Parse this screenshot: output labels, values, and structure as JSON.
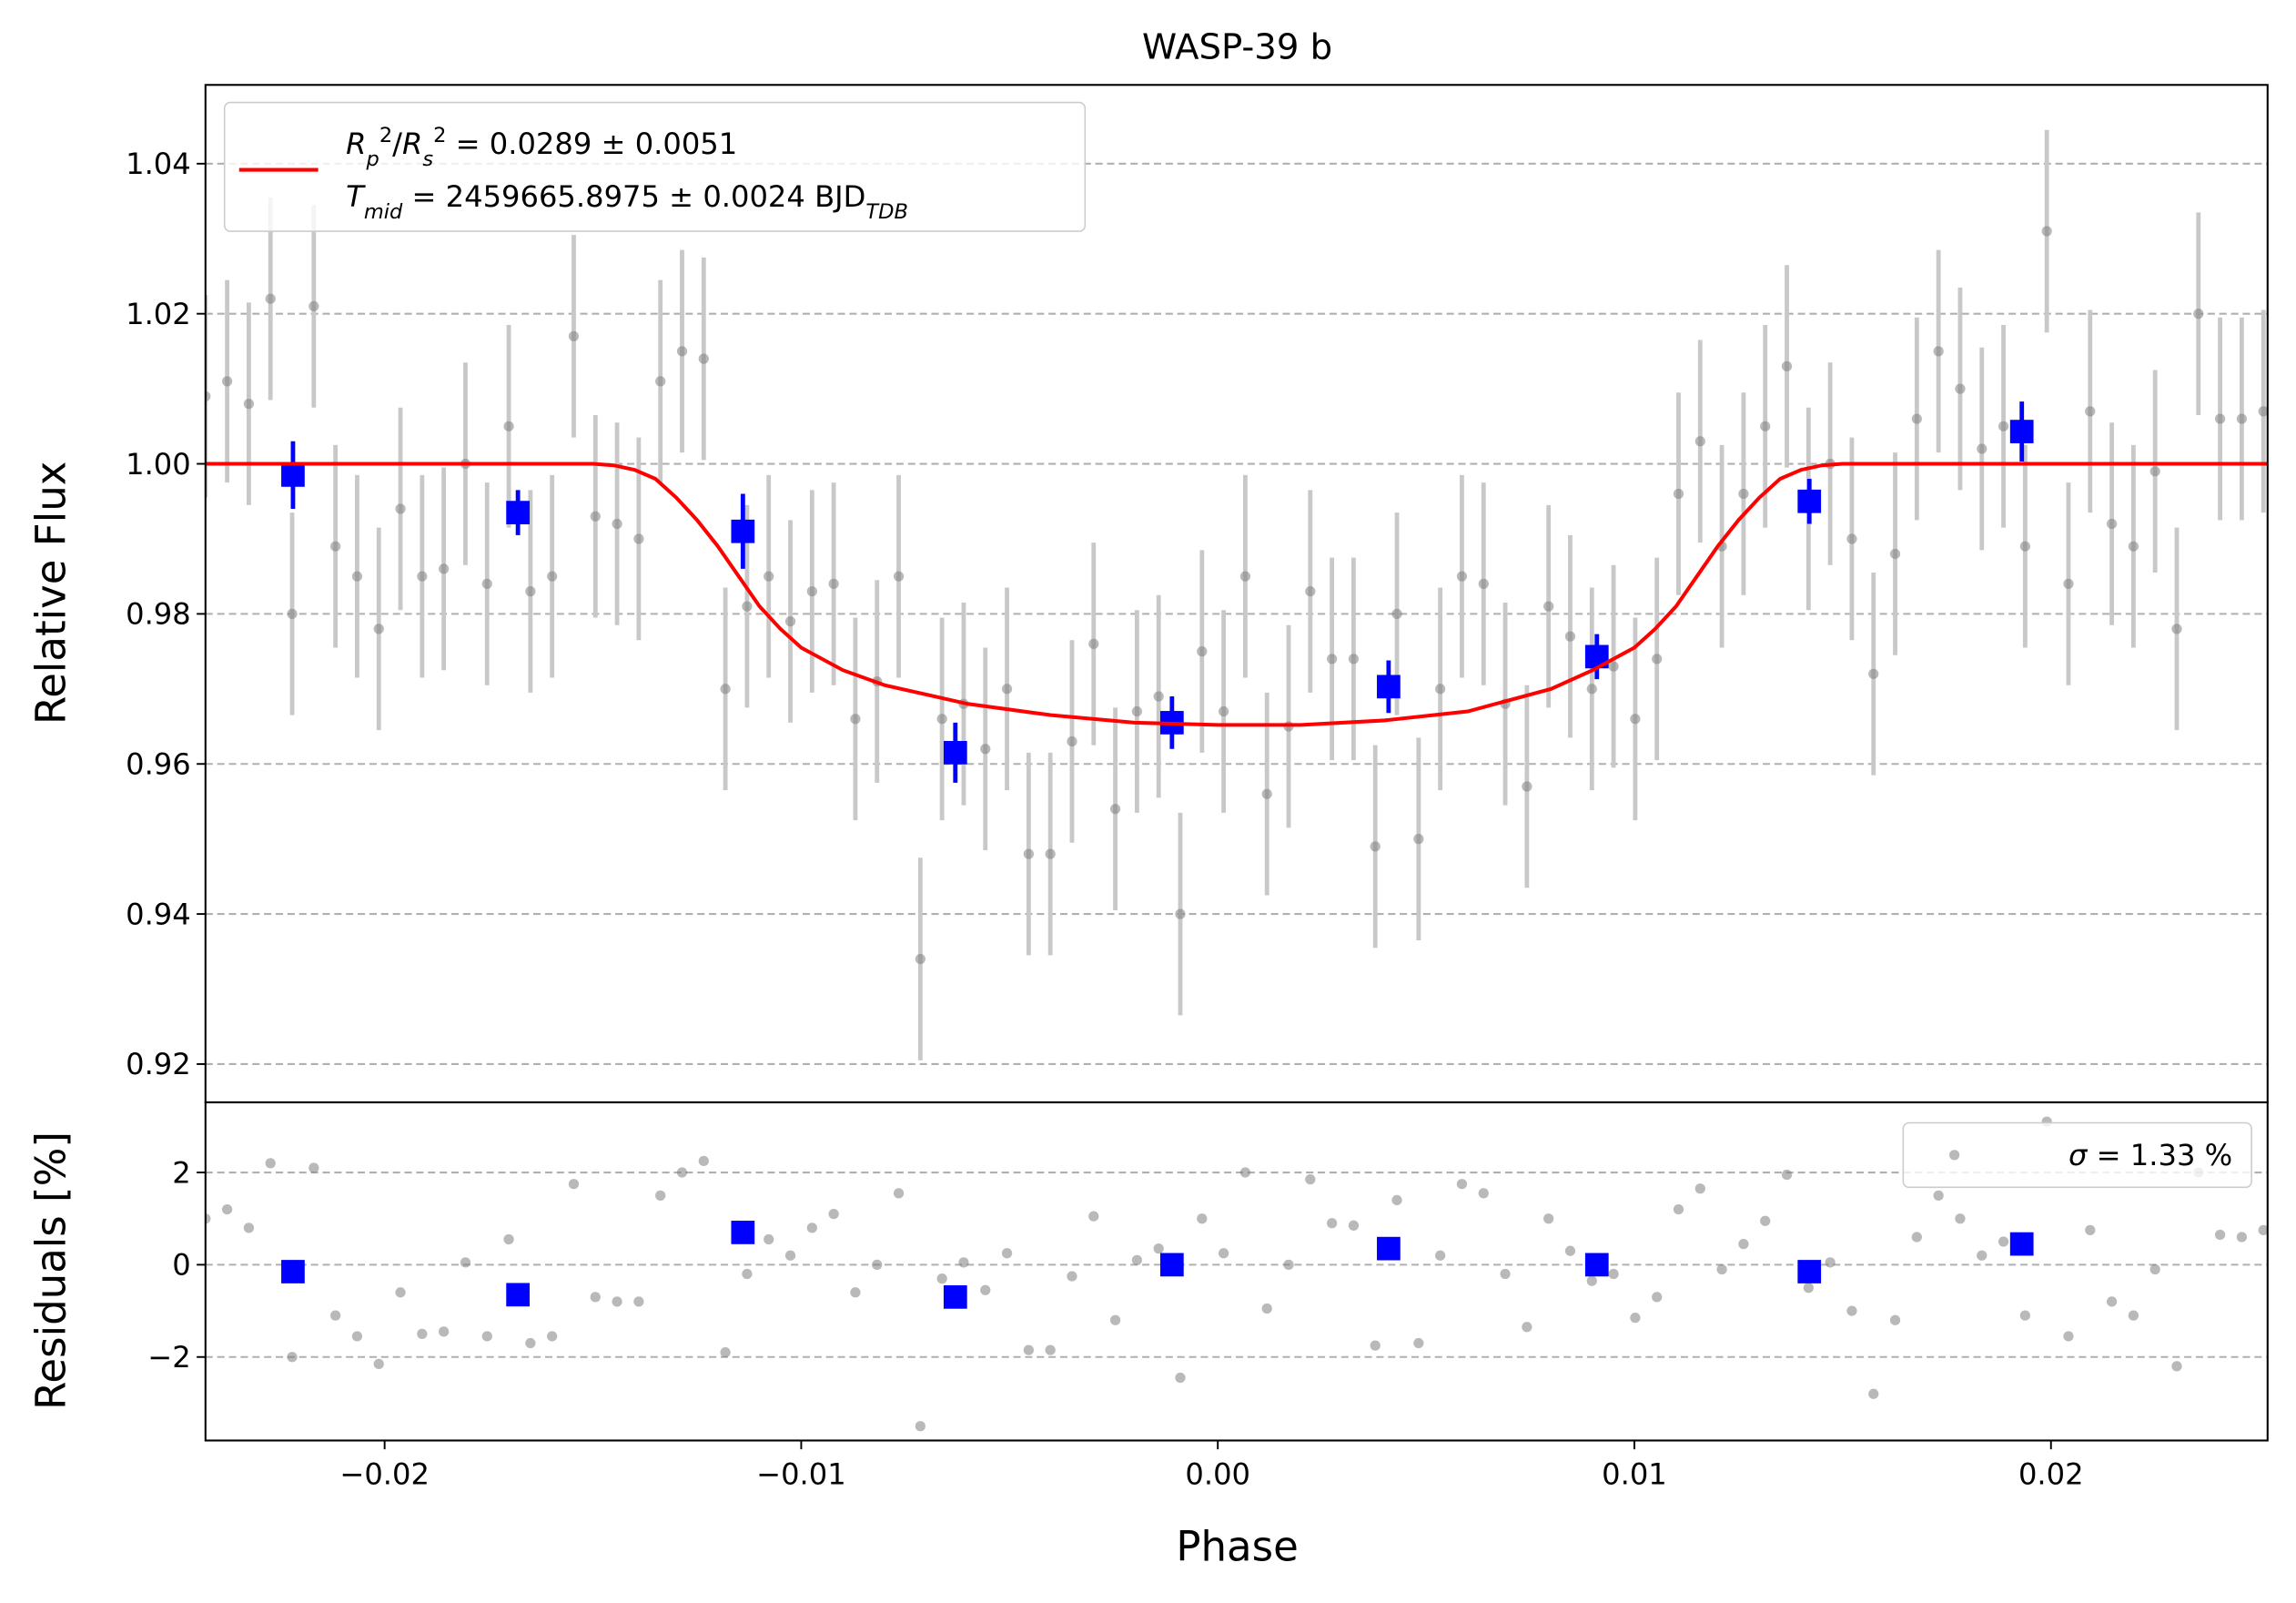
{
  "chart_data": [
    {
      "type": "errorbar",
      "title": "WASP-39 b",
      "y_label": "Relative Flux",
      "xlim": [
        -0.0243,
        0.0252
      ],
      "ylim": [
        0.9149,
        1.0505
      ],
      "yticks": [
        0.92,
        0.94,
        0.96,
        0.98,
        {
          "value": 1.0,
          "label": "1.00"
        },
        1.02,
        1.04
      ],
      "grid": true,
      "legend": "upper left",
      "series": [
        {
          "kind": "points",
          "color": "#808080",
          "error_color": "#c8c8c8",
          "error": 0.0135,
          "x": [
            -0.0243,
            -0.02378,
            -0.02326,
            -0.02274,
            -0.02222,
            -0.0217,
            -0.02118,
            -0.02066,
            -0.02014,
            -0.01962,
            -0.0191,
            -0.01858,
            -0.01806,
            -0.01754,
            -0.01702,
            -0.0165,
            -0.01598,
            -0.01546,
            -0.01494,
            -0.01442,
            -0.0139,
            -0.01338,
            -0.01286,
            -0.01234,
            -0.01182,
            -0.0113,
            -0.01078,
            -0.01026,
            -0.00974,
            -0.00922,
            -0.0087,
            -0.00818,
            -0.00766,
            -0.00714,
            -0.00662,
            -0.0061,
            -0.00558,
            -0.00506,
            -0.00454,
            -0.00402,
            -0.0035,
            -0.00298,
            -0.00246,
            -0.00194,
            -0.00142,
            -0.0009,
            -0.00038,
            0.00014,
            0.00066,
            0.00118,
            0.0017,
            0.00222,
            0.00274,
            0.00326,
            0.00378,
            0.0043,
            0.00482,
            0.00534,
            0.00586,
            0.00638,
            0.0069,
            0.00742,
            0.00794,
            0.00846,
            0.00898,
            0.0095,
            0.01002,
            0.01054,
            0.01106,
            0.01158,
            0.0121,
            0.01262,
            0.01314,
            0.01366,
            0.01418,
            0.0147,
            0.01522,
            0.01574,
            0.01626,
            0.01678,
            0.0173,
            0.01782,
            0.01834,
            0.01886,
            0.01938,
            0.0199,
            0.02042,
            0.02094,
            0.02146,
            0.02198,
            0.0225,
            0.02302,
            0.02354,
            0.02406,
            0.02458,
            0.0251
          ],
          "values": [
            1.009,
            1.011,
            1.008,
            1.022,
            0.98,
            1.021,
            0.989,
            0.985,
            0.978,
            0.994,
            0.985,
            0.986,
            1.0,
            0.984,
            1.005,
            0.983,
            0.985,
            1.017,
            0.993,
            0.992,
            0.99,
            1.011,
            1.015,
            1.014,
            0.97,
            0.981,
            0.985,
            0.979,
            0.983,
            0.984,
            0.966,
            0.971,
            0.985,
            0.934,
            0.966,
            0.968,
            0.962,
            0.97,
            0.948,
            0.948,
            0.963,
            0.976,
            0.954,
            0.967,
            0.969,
            0.94,
            0.975,
            0.967,
            0.985,
            0.956,
            0.965,
            0.983,
            0.974,
            0.974,
            0.949,
            0.98,
            0.95,
            0.97,
            0.985,
            0.984,
            0.968,
            0.957,
            0.981,
            0.977,
            0.97,
            0.973,
            0.966,
            0.974,
            0.996,
            1.003,
            0.989,
            0.996,
            1.005,
            1.013,
            0.994,
            1.0,
            0.99,
            0.972,
            0.988,
            1.006,
            1.015,
            1.01,
            1.002,
            1.005,
            0.989,
            1.031,
            0.984,
            1.007,
            0.992,
            0.989,
            0.999,
            0.978,
            1.02,
            1.006,
            1.006,
            1.007
          ]
        },
        {
          "kind": "binned",
          "color": "#0000ff",
          "x": [
            -0.0222,
            -0.0168,
            -0.0114,
            -0.0063,
            -0.0011,
            0.0041,
            0.0091,
            0.0142,
            0.0193
          ],
          "values": [
            0.9985,
            0.9935,
            0.991,
            0.9615,
            0.9655,
            0.9703,
            0.9743,
            0.995,
            1.0043
          ],
          "errors": [
            0.0045,
            0.003,
            0.005,
            0.004,
            0.0035,
            0.0035,
            0.003,
            0.003,
            0.004
          ]
        },
        {
          "kind": "line",
          "color": "#ff0000",
          "name": [
            [
              {
                "text": "R",
                "italic": true
              },
              {
                "text": "p",
                "italic": true,
                "pos": "sub"
              },
              {
                "text": "2",
                "pos": "sup"
              },
              {
                "text": "/"
              },
              {
                "text": "R",
                "italic": true
              },
              {
                "text": "s",
                "italic": true,
                "pos": "sub"
              },
              {
                "text": "2",
                "pos": "sup"
              },
              {
                "text": " = 0.0289 ± 0.0051"
              }
            ],
            [
              {
                "text": "T",
                "italic": true
              },
              {
                "text": "mid",
                "italic": true,
                "pos": "sub"
              },
              {
                "text": " = 2459665.8975 ± 0.0024 BJD"
              },
              {
                "text": "TDB",
                "italic": true,
                "pos": "sub"
              }
            ]
          ],
          "x": [
            -0.0243,
            -0.015,
            -0.0145,
            -0.014,
            -0.0135,
            -0.013,
            -0.0125,
            -0.012,
            -0.0115,
            -0.011,
            -0.0105,
            -0.01,
            -0.009,
            -0.008,
            -0.006,
            -0.004,
            -0.002,
            0,
            0.002,
            0.004,
            0.006,
            0.008,
            0.009,
            0.01,
            0.0105,
            0.011,
            0.0115,
            0.012,
            0.0125,
            0.013,
            0.0135,
            0.014,
            0.0145,
            0.015,
            0.0252
          ],
          "values": [
            1,
            1,
            0.9998,
            0.9992,
            0.998,
            0.9955,
            0.9925,
            0.989,
            0.985,
            0.981,
            0.978,
            0.9755,
            0.9725,
            0.9705,
            0.968,
            0.9665,
            0.9655,
            0.9652,
            0.9652,
            0.9658,
            0.967,
            0.97,
            0.9725,
            0.9755,
            0.978,
            0.981,
            0.985,
            0.989,
            0.9925,
            0.9955,
            0.998,
            0.9992,
            0.9998,
            1,
            1
          ]
        }
      ]
    },
    {
      "type": "scatter",
      "x_label": "Phase",
      "y_label": "Residuals [%]",
      "xlim": [
        -0.0243,
        0.0252
      ],
      "ylim": [
        -3.81,
        3.52
      ],
      "xticks": [
        {
          "value": -0.02,
          "label": "−0.02"
        },
        {
          "value": -0.01,
          "label": "−0.01"
        },
        {
          "value": 0,
          "label": "0.00"
        },
        0.01,
        0.02
      ],
      "yticks": [
        {
          "value": -2,
          "label": "−2"
        },
        0,
        2
      ],
      "grid": true,
      "legend": "upper right",
      "series": [
        {
          "kind": "points",
          "color": "#808080",
          "name": [
            [
              {
                "text": "σ",
                "italic": true
              },
              {
                "text": " = 1.33 %"
              }
            ]
          ],
          "x": [
            -0.0243,
            -0.02378,
            -0.02326,
            -0.02274,
            -0.02222,
            -0.0217,
            -0.02118,
            -0.02066,
            -0.02014,
            -0.01962,
            -0.0191,
            -0.01858,
            -0.01806,
            -0.01754,
            -0.01702,
            -0.0165,
            -0.01598,
            -0.01546,
            -0.01494,
            -0.01442,
            -0.0139,
            -0.01338,
            -0.01286,
            -0.01234,
            -0.01182,
            -0.0113,
            -0.01078,
            -0.01026,
            -0.00974,
            -0.00922,
            -0.0087,
            -0.00818,
            -0.00766,
            -0.00714,
            -0.00662,
            -0.0061,
            -0.00558,
            -0.00506,
            -0.00454,
            -0.00402,
            -0.0035,
            -0.00298,
            -0.00246,
            -0.00194,
            -0.00142,
            -0.0009,
            -0.00038,
            0.00014,
            0.00066,
            0.00118,
            0.0017,
            0.00222,
            0.00274,
            0.00326,
            0.00378,
            0.0043,
            0.00482,
            0.00534,
            0.00586,
            0.00638,
            0.0069,
            0.00742,
            0.00794,
            0.00846,
            0.00898,
            0.0095,
            0.01002,
            0.01054,
            0.01106,
            0.01158,
            0.0121,
            0.01262,
            0.01314,
            0.01366,
            0.01418,
            0.0147,
            0.01522,
            0.01574,
            0.01626,
            0.01678,
            0.0173,
            0.01782,
            0.01834,
            0.01886,
            0.01938,
            0.0199,
            0.02042,
            0.02094,
            0.02146,
            0.02198,
            0.0225,
            0.02302,
            0.02354,
            0.02406,
            0.02458,
            0.0251
          ],
          "values": [
            1.0,
            1.2,
            0.8,
            2.2,
            -2.0,
            2.1,
            -1.1,
            -1.55,
            -2.15,
            -0.6,
            -1.5,
            -1.45,
            0.05,
            -1.55,
            0.55,
            -1.7,
            -1.55,
            1.75,
            -0.7,
            -0.8,
            -0.8,
            1.5,
            2.0,
            2.25,
            -1.9,
            -0.2,
            0.55,
            0.2,
            0.8,
            1.1,
            -0.6,
            0.0,
            1.55,
            -3.5,
            -0.3,
            0.05,
            -0.55,
            0.25,
            -1.85,
            -1.85,
            -0.25,
            1.05,
            -1.2,
            0.1,
            0.35,
            -2.45,
            1.0,
            0.25,
            2.0,
            -0.95,
            0.0,
            1.85,
            0.9,
            0.85,
            -1.75,
            1.4,
            -1.7,
            0.2,
            1.75,
            1.55,
            -0.2,
            -1.35,
            1.0,
            0.3,
            -0.35,
            -0.2,
            -1.15,
            -0.7,
            1.2,
            1.65,
            -0.1,
            0.45,
            0.95,
            1.95,
            -0.5,
            0.05,
            -1.0,
            -2.8,
            -1.2,
            0.6,
            1.5,
            1.0,
            0.2,
            0.5,
            -1.1,
            3.1,
            -1.55,
            0.75,
            -0.8,
            -1.1,
            -0.1,
            -2.2,
            2.0,
            0.65,
            0.6,
            0.75
          ]
        },
        {
          "kind": "binned",
          "color": "#0000ff",
          "x": [
            -0.0222,
            -0.0168,
            -0.0114,
            -0.0063,
            -0.0011,
            0.0041,
            0.0091,
            0.0142,
            0.0193
          ],
          "values": [
            -0.15,
            -0.65,
            0.7,
            -0.7,
            0.0,
            0.35,
            0.0,
            -0.15,
            0.45
          ]
        }
      ]
    }
  ]
}
